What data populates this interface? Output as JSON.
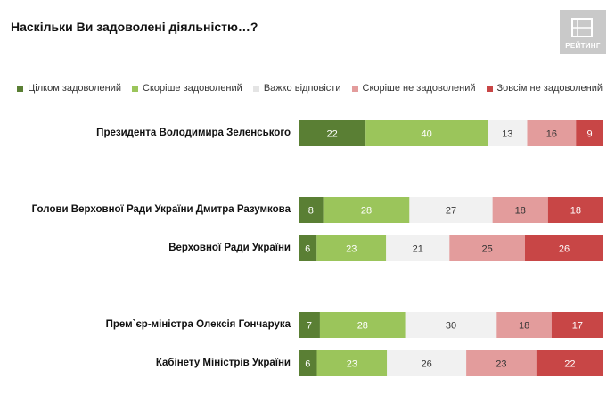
{
  "header": {
    "title": "Наскільки Ви задоволені діяльністю…?",
    "logo_text": "РЕЙТИНГ"
  },
  "chart_data": {
    "type": "bar",
    "orientation": "horizontal",
    "stacked": true,
    "title": "Наскільки Ви задоволені діяльністю…?",
    "legend_position": "top-right",
    "grid": false,
    "xlim": [
      0,
      100
    ],
    "categories": [
      "Президента Володимира Зеленського",
      "Голови Верховної Ради України Дмитра Разумкова",
      "Верховної Ради України",
      "Прем`єр-міністра Олексія Гончарука",
      "Кабінету Міністрів України"
    ],
    "series": [
      {
        "name": "Цілком задоволений",
        "color": "#5a7f34",
        "text_color": "#ffffff",
        "values": [
          22,
          8,
          6,
          7,
          6
        ]
      },
      {
        "name": "Скоріше задоволений",
        "color": "#9bc55b",
        "text_color": "#ffffff",
        "values": [
          40,
          28,
          23,
          28,
          23
        ]
      },
      {
        "name": "Важко відповісти",
        "color": "#f1f1f1",
        "text_color": "#333333",
        "values": [
          13,
          27,
          21,
          30,
          26
        ]
      },
      {
        "name": "Скоріше не задоволений",
        "color": "#e39c9c",
        "text_color": "#333333",
        "values": [
          16,
          18,
          25,
          18,
          23
        ]
      },
      {
        "name": "Зовсім не задоволений",
        "color": "#c84646",
        "text_color": "#ffffff",
        "values": [
          9,
          18,
          26,
          17,
          22
        ]
      }
    ]
  }
}
